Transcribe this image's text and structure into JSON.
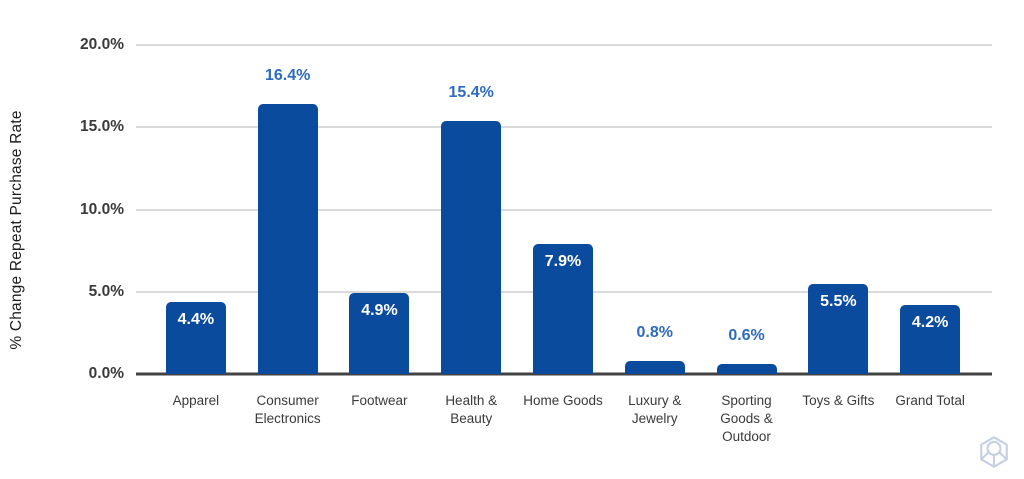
{
  "chart_data": {
    "type": "bar",
    "title": "",
    "xlabel": "",
    "ylabel": "% Change Repeat Purchase Rate",
    "categories": [
      "Apparel",
      "Consumer Electronics",
      "Footwear",
      "Health & Beauty",
      "Home Goods",
      "Luxury & Jewelry",
      "Sporting Goods & Outdoor",
      "Toys & Gifts",
      "Grand Total"
    ],
    "values": [
      4.4,
      16.4,
      4.9,
      15.4,
      7.9,
      0.8,
      0.6,
      5.5,
      4.2
    ],
    "labels": [
      "4.4%",
      "16.4%",
      "4.9%",
      "15.4%",
      "7.9%",
      "0.8%",
      "0.6%",
      "5.5%",
      "4.2%"
    ],
    "label_positions": [
      "inside",
      "above",
      "inside",
      "above",
      "inside",
      "above",
      "above",
      "inside",
      "inside"
    ],
    "ylim": [
      0,
      20
    ],
    "yticks": [
      {
        "label": "0.0%",
        "value": 0
      },
      {
        "label": "5.0%",
        "value": 5
      },
      {
        "label": "10.0%",
        "value": 10
      },
      {
        "label": "15.0%",
        "value": 15
      },
      {
        "label": "20.0%",
        "value": 20
      }
    ],
    "grid": true,
    "legend": false
  },
  "colors": {
    "bar": "#0b4b9e",
    "label_above": "#2e6bc0",
    "label_inside": "#ffffff",
    "axis_text": "#3a3a3a",
    "gridline": "#dadada",
    "baseline": "#424242",
    "watermark": "#c5cfe2"
  },
  "icons": {
    "watermark": "cube-icon"
  }
}
